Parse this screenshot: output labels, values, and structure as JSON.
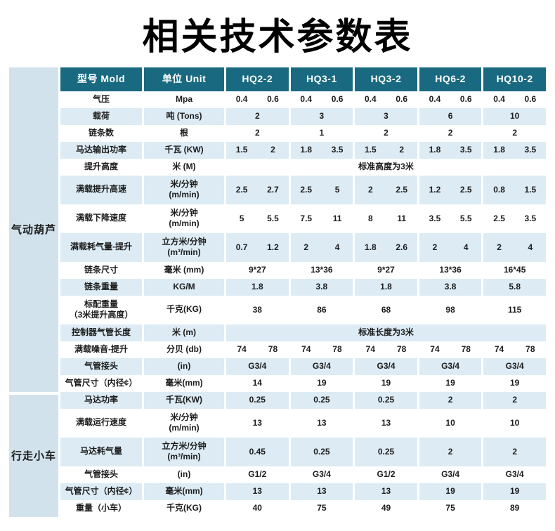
{
  "title": "相关技术参数表",
  "table": {
    "colors": {
      "header_bg": "#196a80",
      "header_text": "#ffffff",
      "stripe_bg": "#dcebf4",
      "group_bg": "#d2e2ed"
    },
    "header": {
      "model_label": "型号 Mold",
      "unit_label": "单位 Unit",
      "models": [
        "HQ2-2",
        "HQ3-1",
        "HQ3-2",
        "HQ6-2",
        "HQ10-2"
      ]
    },
    "groups": [
      {
        "name": "气动葫芦",
        "rows": [
          {
            "label": [
              "气压"
            ],
            "unit": [
              "Mpa"
            ],
            "type": "pair",
            "values": [
              [
                "0.4",
                "0.6"
              ],
              [
                "0.4",
                "0.6"
              ],
              [
                "0.4",
                "0.6"
              ],
              [
                "0.4",
                "0.6"
              ],
              [
                "0.4",
                "0.6"
              ]
            ]
          },
          {
            "label": [
              "载荷"
            ],
            "unit": [
              "吨 (Tons)"
            ],
            "type": "single",
            "values": [
              "2",
              "3",
              "3",
              "6",
              "10"
            ]
          },
          {
            "label": [
              "链条数"
            ],
            "unit": [
              "根"
            ],
            "type": "single",
            "values": [
              "2",
              "1",
              "2",
              "2",
              "2"
            ]
          },
          {
            "label": [
              "马达输出功率"
            ],
            "unit": [
              "千瓦 (KW)"
            ],
            "type": "pair",
            "values": [
              [
                "1.5",
                "2"
              ],
              [
                "1.8",
                "3.5"
              ],
              [
                "1.5",
                "2"
              ],
              [
                "1.8",
                "3.5"
              ],
              [
                "1.8",
                "3.5"
              ]
            ]
          },
          {
            "label": [
              "提升高度"
            ],
            "unit": [
              "米 (M)"
            ],
            "type": "merged",
            "merged_value": "标准高度为3米"
          },
          {
            "label": [
              "满载提升高速"
            ],
            "unit": [
              "米/分钟",
              "(m/min)"
            ],
            "tall": true,
            "type": "pair",
            "values": [
              [
                "2.5",
                "2.7"
              ],
              [
                "2.5",
                "5"
              ],
              [
                "2",
                "2.5"
              ],
              [
                "1.2",
                "2.5"
              ],
              [
                "0.8",
                "1.5"
              ]
            ]
          },
          {
            "label": [
              "满载下降速度"
            ],
            "unit": [
              "米/分钟",
              "(m/min)"
            ],
            "tall": true,
            "type": "pair",
            "values": [
              [
                "5",
                "5.5"
              ],
              [
                "7.5",
                "11"
              ],
              [
                "8",
                "11"
              ],
              [
                "3.5",
                "5.5"
              ],
              [
                "2.5",
                "3.5"
              ]
            ]
          },
          {
            "label": [
              "满载耗气量-提升"
            ],
            "unit": [
              "立方米/分钟",
              "(m³/min)"
            ],
            "tall": true,
            "type": "pair",
            "values": [
              [
                "0.7",
                "1.2"
              ],
              [
                "2",
                "4"
              ],
              [
                "1.8",
                "2.6"
              ],
              [
                "2",
                "4"
              ],
              [
                "2",
                "4"
              ]
            ]
          },
          {
            "label": [
              "链条尺寸"
            ],
            "unit": [
              "毫米 (mm)"
            ],
            "type": "single",
            "values": [
              "9*27",
              "13*36",
              "9*27",
              "13*36",
              "16*45"
            ]
          },
          {
            "label": [
              "链条重量"
            ],
            "unit": [
              "KG/M"
            ],
            "type": "single",
            "values": [
              "1.8",
              "3.8",
              "1.8",
              "3.8",
              "5.8"
            ]
          },
          {
            "label": [
              "标配重量",
              "（3米提升高度）"
            ],
            "unit": [
              "千克(KG)"
            ],
            "tall": true,
            "type": "single",
            "values": [
              "38",
              "86",
              "68",
              "98",
              "115"
            ]
          },
          {
            "label": [
              "控制器气管长度"
            ],
            "unit": [
              "米 (m)"
            ],
            "type": "merged",
            "merged_value": "标准长度为3米"
          },
          {
            "label": [
              "满载噪音-提升"
            ],
            "unit": [
              "分贝 (db)"
            ],
            "type": "pair",
            "values": [
              [
                "74",
                "78"
              ],
              [
                "74",
                "78"
              ],
              [
                "74",
                "78"
              ],
              [
                "74",
                "78"
              ],
              [
                "74",
                "78"
              ]
            ]
          },
          {
            "label": [
              "气管接头"
            ],
            "unit": [
              "(in)"
            ],
            "type": "single",
            "values": [
              "G3/4",
              "G3/4",
              "G3/4",
              "G3/4",
              "G3/4"
            ]
          },
          {
            "label": [
              "气管尺寸（内径¢）"
            ],
            "unit": [
              "毫米(mm)"
            ],
            "type": "single",
            "values": [
              "14",
              "19",
              "19",
              "19",
              "19"
            ]
          }
        ]
      },
      {
        "name": "行走小车",
        "rows": [
          {
            "label": [
              "马达功率"
            ],
            "unit": [
              "千瓦(KW)"
            ],
            "type": "single",
            "values": [
              "0.25",
              "0.25",
              "0.25",
              "2",
              "2"
            ]
          },
          {
            "label": [
              "满载运行速度"
            ],
            "unit": [
              "米/分钟",
              "(m/min)"
            ],
            "tall": true,
            "type": "single",
            "values": [
              "13",
              "13",
              "13",
              "10",
              "10"
            ]
          },
          {
            "label": [
              "马达耗气量"
            ],
            "unit": [
              "立方米/分钟",
              "(m³/min)"
            ],
            "tall": true,
            "type": "single",
            "values": [
              "0.45",
              "0.25",
              "0.25",
              "2",
              "2"
            ]
          },
          {
            "label": [
              "气管接头"
            ],
            "unit": [
              "(in)"
            ],
            "type": "single",
            "values": [
              "G1/2",
              "G3/4",
              "G1/2",
              "G3/4",
              "G3/4"
            ]
          },
          {
            "label": [
              "气管尺寸（内径¢）"
            ],
            "unit": [
              "毫米(mm)"
            ],
            "type": "single",
            "values": [
              "13",
              "13",
              "13",
              "19",
              "19"
            ]
          },
          {
            "label": [
              "重量（小车）"
            ],
            "unit": [
              "千克(KG)"
            ],
            "type": "single",
            "values": [
              "40",
              "75",
              "49",
              "75",
              "89"
            ]
          }
        ]
      }
    ]
  }
}
